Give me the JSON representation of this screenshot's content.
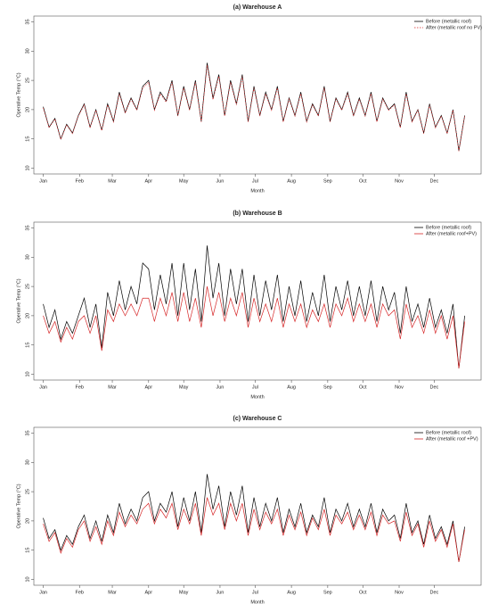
{
  "chart_data": [
    {
      "type": "line",
      "title": "(a) Warehouse A",
      "xlabel": "Month",
      "ylabel": "Operative Temp (°C)",
      "xlim": [
        -7,
        375
      ],
      "ylim": [
        9,
        36
      ],
      "yticks": [
        10,
        15,
        20,
        25,
        30,
        35
      ],
      "xticks": [
        {
          "value": 1,
          "label": "Jan"
        },
        {
          "value": 32,
          "label": "Feb"
        },
        {
          "value": 60,
          "label": "Mar"
        },
        {
          "value": 91,
          "label": "Apr"
        },
        {
          "value": 121,
          "label": "May"
        },
        {
          "value": 152,
          "label": "Jun"
        },
        {
          "value": 182,
          "label": "Jul"
        },
        {
          "value": 213,
          "label": "Aug"
        },
        {
          "value": 244,
          "label": "Sep"
        },
        {
          "value": 274,
          "label": "Oct"
        },
        {
          "value": 305,
          "label": "Nov"
        },
        {
          "value": 335,
          "label": "Dec"
        }
      ],
      "legend": "top-right",
      "x": [
        1,
        6,
        11,
        16,
        21,
        26,
        31,
        36,
        41,
        46,
        51,
        56,
        61,
        66,
        71,
        76,
        81,
        86,
        91,
        96,
        101,
        106,
        111,
        116,
        121,
        126,
        131,
        136,
        141,
        146,
        151,
        156,
        161,
        166,
        171,
        176,
        181,
        186,
        191,
        196,
        201,
        206,
        211,
        216,
        221,
        226,
        231,
        236,
        241,
        246,
        251,
        256,
        261,
        266,
        271,
        276,
        281,
        286,
        291,
        296,
        301,
        306,
        311,
        316,
        321,
        326,
        331,
        336,
        341,
        346,
        351,
        356,
        361
      ],
      "series": [
        {
          "name": "Before (metallic roof)",
          "color": "#000000",
          "linestyle": "solid",
          "values": [
            20.5,
            17,
            18.5,
            15,
            17.5,
            16,
            19,
            21,
            17,
            20,
            16.5,
            21,
            18,
            23,
            19.5,
            22,
            20,
            24,
            25,
            20,
            23,
            21.5,
            25,
            19,
            24,
            20,
            25,
            18,
            28,
            22,
            26,
            19,
            25,
            21,
            26,
            18,
            24,
            19,
            23,
            20,
            24,
            18,
            22,
            19,
            23,
            18,
            21,
            19,
            24,
            18,
            22,
            20,
            23,
            19,
            22,
            19,
            23,
            18,
            22,
            20,
            21,
            17,
            23,
            18,
            20,
            16,
            21,
            17,
            19,
            16,
            20,
            13,
            19
          ]
        },
        {
          "name": "After (metallic roof no PV)",
          "color": "#d62728",
          "linestyle": "dotted",
          "values": [
            20.3,
            16.9,
            18.4,
            14.9,
            17.4,
            15.9,
            18.9,
            20.8,
            16.9,
            19.9,
            16.4,
            20.8,
            17.9,
            22.7,
            19.4,
            21.8,
            19.9,
            23.7,
            24.7,
            19.9,
            22.7,
            21.3,
            24.7,
            18.9,
            23.7,
            19.9,
            24.7,
            17.9,
            27.6,
            21.7,
            25.7,
            18.9,
            24.7,
            20.8,
            25.7,
            17.9,
            23.7,
            18.9,
            22.7,
            19.9,
            23.7,
            17.9,
            21.8,
            18.9,
            22.7,
            17.9,
            20.8,
            18.9,
            23.7,
            17.9,
            21.8,
            19.9,
            22.7,
            18.9,
            21.8,
            18.9,
            22.7,
            17.9,
            21.8,
            19.9,
            20.8,
            16.9,
            22.7,
            17.9,
            19.9,
            15.9,
            20.8,
            16.9,
            18.9,
            15.9,
            19.9,
            12.9,
            18.9
          ]
        }
      ]
    },
    {
      "type": "line",
      "title": "(b) Warehouse B",
      "xlabel": "Month",
      "ylabel": "Operative Temp (°C)",
      "xlim": [
        -7,
        375
      ],
      "ylim": [
        9,
        36
      ],
      "yticks": [
        10,
        15,
        20,
        25,
        30,
        35
      ],
      "xticks": [
        {
          "value": 1,
          "label": "Jan"
        },
        {
          "value": 32,
          "label": "Feb"
        },
        {
          "value": 60,
          "label": "Mar"
        },
        {
          "value": 91,
          "label": "Apr"
        },
        {
          "value": 121,
          "label": "May"
        },
        {
          "value": 152,
          "label": "Jun"
        },
        {
          "value": 182,
          "label": "Jul"
        },
        {
          "value": 213,
          "label": "Aug"
        },
        {
          "value": 244,
          "label": "Sep"
        },
        {
          "value": 274,
          "label": "Oct"
        },
        {
          "value": 305,
          "label": "Nov"
        },
        {
          "value": 335,
          "label": "Dec"
        }
      ],
      "legend": "top-right",
      "x": [
        1,
        6,
        11,
        16,
        21,
        26,
        31,
        36,
        41,
        46,
        51,
        56,
        61,
        66,
        71,
        76,
        81,
        86,
        91,
        96,
        101,
        106,
        111,
        116,
        121,
        126,
        131,
        136,
        141,
        146,
        151,
        156,
        161,
        166,
        171,
        176,
        181,
        186,
        191,
        196,
        201,
        206,
        211,
        216,
        221,
        226,
        231,
        236,
        241,
        246,
        251,
        256,
        261,
        266,
        271,
        276,
        281,
        286,
        291,
        296,
        301,
        306,
        311,
        316,
        321,
        326,
        331,
        336,
        341,
        346,
        351,
        356,
        361
      ],
      "series": [
        {
          "name": "Before (metallic roof)",
          "color": "#000000",
          "linestyle": "solid",
          "values": [
            22,
            18,
            21,
            16,
            19,
            17,
            20,
            23,
            18,
            22,
            14.5,
            24,
            20,
            26,
            21,
            25,
            22,
            29,
            28,
            21,
            27,
            22,
            29,
            20,
            29,
            21,
            28,
            19,
            32,
            23,
            29,
            20,
            28,
            22,
            28,
            19,
            27,
            20,
            26,
            21,
            27,
            19,
            25,
            20,
            26,
            19,
            24,
            20,
            27,
            19,
            25,
            21,
            26,
            20,
            25,
            20,
            26,
            19,
            25,
            21,
            24,
            17,
            25,
            19,
            22,
            18,
            23,
            18,
            21,
            17,
            22,
            11,
            20
          ]
        },
        {
          "name": "After (metallic roof+PV)",
          "color": "#d62728",
          "linestyle": "solid",
          "values": [
            20,
            17,
            19,
            15.5,
            18,
            16,
            19,
            20,
            17,
            20,
            14,
            21,
            19,
            22,
            20,
            22,
            20,
            23,
            23,
            19,
            23,
            20,
            24,
            19,
            24,
            19,
            23,
            18,
            25,
            20,
            24,
            19,
            23,
            20,
            24,
            18,
            23,
            19,
            22,
            19,
            23,
            18,
            22,
            19,
            22,
            18,
            21,
            19,
            22,
            18,
            22,
            20,
            23,
            19,
            22,
            19,
            22,
            18,
            22,
            20,
            21,
            16,
            22,
            18,
            20,
            17,
            21,
            17,
            20,
            16,
            20,
            11,
            19
          ]
        }
      ]
    },
    {
      "type": "line",
      "title": "(c) Warehouse C",
      "xlabel": "Month",
      "ylabel": "Operative Temp (°C)",
      "xlim": [
        -7,
        375
      ],
      "ylim": [
        9,
        36
      ],
      "yticks": [
        10,
        15,
        20,
        25,
        30,
        35
      ],
      "xticks": [
        {
          "value": 1,
          "label": "Jan"
        },
        {
          "value": 32,
          "label": "Feb"
        },
        {
          "value": 60,
          "label": "Mar"
        },
        {
          "value": 91,
          "label": "Apr"
        },
        {
          "value": 121,
          "label": "May"
        },
        {
          "value": 152,
          "label": "Jun"
        },
        {
          "value": 182,
          "label": "Jul"
        },
        {
          "value": 213,
          "label": "Aug"
        },
        {
          "value": 244,
          "label": "Sep"
        },
        {
          "value": 274,
          "label": "Oct"
        },
        {
          "value": 305,
          "label": "Nov"
        },
        {
          "value": 335,
          "label": "Dec"
        }
      ],
      "legend": "top-right",
      "x": [
        1,
        6,
        11,
        16,
        21,
        26,
        31,
        36,
        41,
        46,
        51,
        56,
        61,
        66,
        71,
        76,
        81,
        86,
        91,
        96,
        101,
        106,
        111,
        116,
        121,
        126,
        131,
        136,
        141,
        146,
        151,
        156,
        161,
        166,
        171,
        176,
        181,
        186,
        191,
        196,
        201,
        206,
        211,
        216,
        221,
        226,
        231,
        236,
        241,
        246,
        251,
        256,
        261,
        266,
        271,
        276,
        281,
        286,
        291,
        296,
        301,
        306,
        311,
        316,
        321,
        326,
        331,
        336,
        341,
        346,
        351,
        356,
        361
      ],
      "series": [
        {
          "name": "Before (metallic roof)",
          "color": "#000000",
          "linestyle": "solid",
          "values": [
            20.5,
            17,
            18.5,
            15,
            17.5,
            16,
            19,
            21,
            17,
            20,
            16.5,
            21,
            18,
            23,
            19.5,
            22,
            20,
            24,
            25,
            20,
            23,
            21.5,
            25,
            19,
            24,
            20,
            25,
            18,
            28,
            22,
            26,
            19,
            25,
            21,
            26,
            18,
            24,
            19,
            23,
            20,
            24,
            18,
            22,
            19,
            23,
            18,
            21,
            19,
            24,
            18,
            22,
            20,
            23,
            19,
            22,
            19,
            23,
            18,
            22,
            20,
            21,
            17,
            23,
            18,
            20,
            16,
            21,
            17,
            19,
            16,
            20,
            13,
            19
          ]
        },
        {
          "name": "After (metallic roof +PV)",
          "color": "#d62728",
          "linestyle": "solid",
          "values": [
            19.5,
            16.5,
            18,
            14.5,
            17,
            15.5,
            18.5,
            20,
            16.5,
            19,
            16,
            20,
            17.5,
            21.5,
            19,
            21,
            19.5,
            22,
            23,
            19.5,
            22,
            20.5,
            23,
            18.5,
            22,
            19.5,
            23,
            17.5,
            24,
            21,
            23,
            18.5,
            23,
            20,
            23,
            17.5,
            22,
            18.5,
            21.5,
            19.5,
            22,
            17.5,
            21,
            18.5,
            21.5,
            17.5,
            20.5,
            18.5,
            22,
            17.5,
            21,
            19.5,
            21.5,
            18.5,
            21,
            18.5,
            21.5,
            17.5,
            21,
            19.5,
            20,
            16.5,
            21.5,
            17.5,
            19.5,
            15.5,
            20,
            16.5,
            18.5,
            15.5,
            19.5,
            13,
            18.5
          ]
        }
      ]
    }
  ]
}
